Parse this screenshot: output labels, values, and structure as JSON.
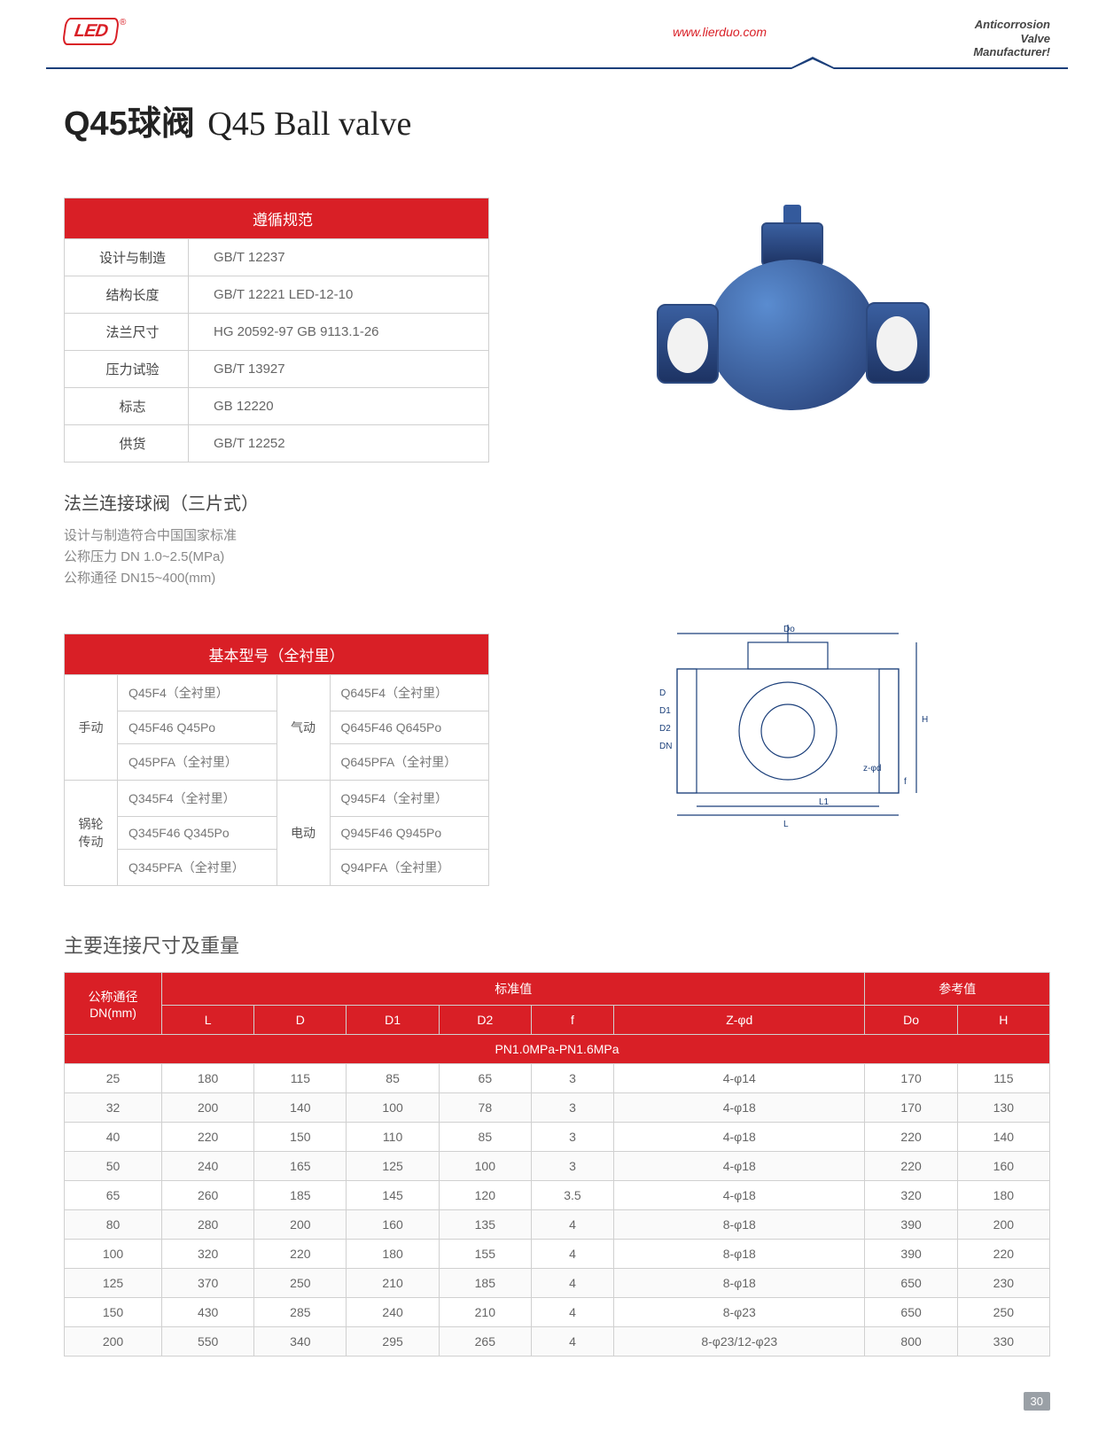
{
  "header": {
    "logo_text": "LED",
    "website": "www.lierduo.com",
    "tag_l1": "Anticorrosion",
    "tag_l2": "Valve",
    "tag_l3": "Manufacturer!"
  },
  "title": {
    "cn": "Q45球阀",
    "en": "Q45 Ball valve"
  },
  "standards": {
    "header": "遵循规范",
    "rows": [
      {
        "label": "设计与制造",
        "value": "GB/T 12237"
      },
      {
        "label": "结构长度",
        "value": "GB/T 12221  LED-12-10"
      },
      {
        "label": "法兰尺寸",
        "value": "HG 20592-97  GB 9113.1-26"
      },
      {
        "label": "压力试验",
        "value": "GB/T 13927"
      },
      {
        "label": "标志",
        "value": "GB 12220"
      },
      {
        "label": "供货",
        "value": "GB/T 12252"
      }
    ]
  },
  "section2": {
    "heading": "法兰连接球阀（三片式）",
    "line1": "设计与制造符合中国国家标准",
    "line2": "公称压力 DN 1.0~2.5(MPa)",
    "line3": "公称通径 DN15~400(mm)"
  },
  "models": {
    "header": "基本型号（全衬里）",
    "groups": [
      {
        "left_label": "手动",
        "right_label": "气动",
        "rows": [
          [
            "Q45F4（全衬里）",
            "Q645F4（全衬里）"
          ],
          [
            "Q45F46  Q45Po",
            "Q645F46  Q645Po"
          ],
          [
            "Q45PFA（全衬里）",
            "Q645PFA（全衬里）"
          ]
        ]
      },
      {
        "left_label": "锅轮传动",
        "right_label": "电动",
        "rows": [
          [
            "Q345F4（全衬里）",
            "Q945F4（全衬里）"
          ],
          [
            "Q345F46  Q345Po",
            "Q945F46  Q945Po"
          ],
          [
            "Q345PFA（全衬里）",
            "Q94PFA（全衬里）"
          ]
        ]
      }
    ]
  },
  "drawing_labels": {
    "Do": "Do",
    "D": "D",
    "D1": "D1",
    "D2": "D2",
    "DN": "DN",
    "H": "H",
    "f": "f",
    "zphid": "z-φd",
    "L": "L",
    "L1": "L1"
  },
  "dim_table": {
    "title": "主要连接尺寸及重量",
    "dn_header": "公称通径\nDN(mm)",
    "std_header": "标准值",
    "ref_header": "参考值",
    "cols": [
      "L",
      "D",
      "D1",
      "D2",
      "f",
      "Z-φd",
      "Do",
      "H"
    ],
    "band": "PN1.0MPa-PN1.6MPa",
    "rows": [
      [
        "25",
        "180",
        "115",
        "85",
        "65",
        "3",
        "4-φ14",
        "170",
        "115"
      ],
      [
        "32",
        "200",
        "140",
        "100",
        "78",
        "3",
        "4-φ18",
        "170",
        "130"
      ],
      [
        "40",
        "220",
        "150",
        "110",
        "85",
        "3",
        "4-φ18",
        "220",
        "140"
      ],
      [
        "50",
        "240",
        "165",
        "125",
        "100",
        "3",
        "4-φ18",
        "220",
        "160"
      ],
      [
        "65",
        "260",
        "185",
        "145",
        "120",
        "3.5",
        "4-φ18",
        "320",
        "180"
      ],
      [
        "80",
        "280",
        "200",
        "160",
        "135",
        "4",
        "8-φ18",
        "390",
        "200"
      ],
      [
        "100",
        "320",
        "220",
        "180",
        "155",
        "4",
        "8-φ18",
        "390",
        "220"
      ],
      [
        "125",
        "370",
        "250",
        "210",
        "185",
        "4",
        "8-φ18",
        "650",
        "230"
      ],
      [
        "150",
        "430",
        "285",
        "240",
        "210",
        "4",
        "8-φ23",
        "650",
        "250"
      ],
      [
        "200",
        "550",
        "340",
        "295",
        "265",
        "4",
        "8-φ23/12-φ23",
        "800",
        "330"
      ]
    ]
  },
  "page_number": "30",
  "colors": {
    "accent": "#d91f26",
    "rule": "#1b3f7a",
    "border": "#d0d0d0"
  }
}
